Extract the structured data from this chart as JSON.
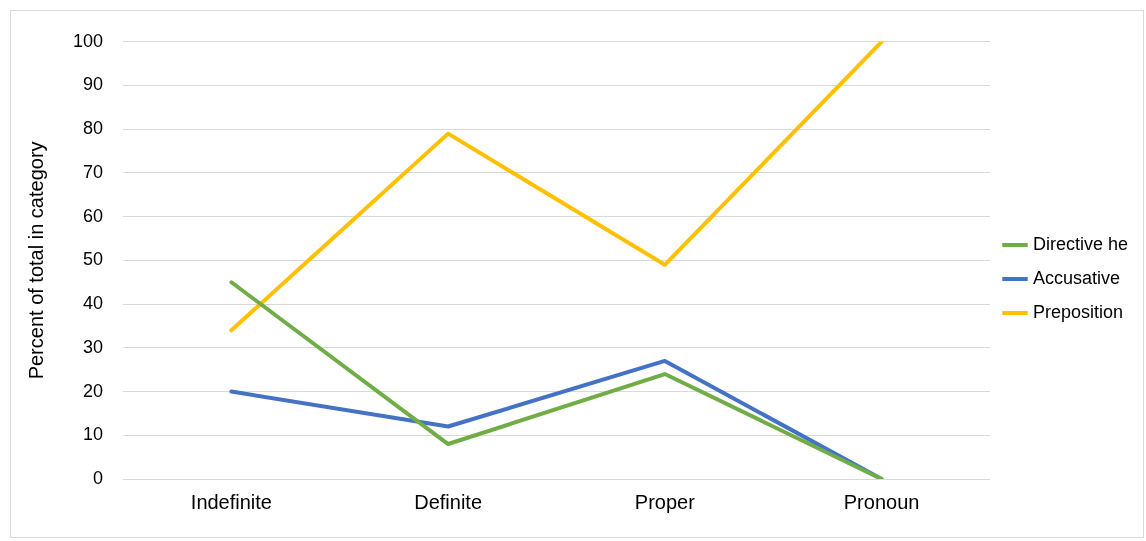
{
  "chart_data": {
    "type": "line",
    "ylabel": "Percent of total in category",
    "categories": [
      "Indefinite",
      "Definite",
      "Proper",
      "Pronoun"
    ],
    "series": [
      {
        "name": "Directive he",
        "color": "#70ad47",
        "values": [
          45,
          8,
          24,
          0
        ]
      },
      {
        "name": "Accusative",
        "color": "#4472c4",
        "values": [
          20,
          12,
          27,
          0
        ]
      },
      {
        "name": "Preposition",
        "color": "#ffc000",
        "values": [
          34,
          79,
          49,
          100
        ]
      }
    ],
    "ylim": [
      0,
      100
    ],
    "yticks": [
      0,
      10,
      20,
      30,
      40,
      50,
      60,
      70,
      80,
      90,
      100
    ],
    "grid": "y",
    "legend": "right",
    "marker": "none",
    "line_style": "solid"
  }
}
